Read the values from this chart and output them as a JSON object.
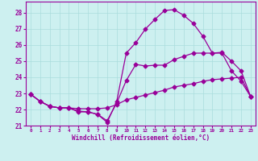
{
  "background_color": "#cdf0f0",
  "grid_color": "#aadddd",
  "line_color": "#990099",
  "xlabel": "Windchill (Refroidissement éolien,°C)",
  "ylabel_ticks": [
    21,
    22,
    23,
    24,
    25,
    26,
    27,
    28
  ],
  "xlim": [
    -0.5,
    23.5
  ],
  "ylim": [
    21.0,
    28.7
  ],
  "x_ticks": [
    0,
    1,
    2,
    3,
    4,
    5,
    6,
    7,
    8,
    9,
    10,
    11,
    12,
    13,
    14,
    15,
    16,
    17,
    18,
    19,
    20,
    21,
    22,
    23
  ],
  "series1_x": [
    0,
    1,
    2,
    3,
    4,
    5,
    6,
    7,
    8,
    9,
    10,
    11,
    12,
    13,
    14,
    15,
    16,
    17,
    18,
    19,
    20,
    21,
    22,
    23
  ],
  "series1_y": [
    22.95,
    22.5,
    22.2,
    22.1,
    22.1,
    22.05,
    22.05,
    22.05,
    22.1,
    22.3,
    22.6,
    22.75,
    22.9,
    23.05,
    23.2,
    23.4,
    23.5,
    23.6,
    23.75,
    23.85,
    23.9,
    23.95,
    24.0,
    22.8
  ],
  "series2_x": [
    0,
    1,
    2,
    3,
    4,
    5,
    6,
    7,
    8,
    9,
    10,
    11,
    12,
    13,
    14,
    15,
    16,
    17,
    18,
    19,
    20,
    21,
    22,
    23
  ],
  "series2_y": [
    22.95,
    22.5,
    22.2,
    22.1,
    22.1,
    21.9,
    21.85,
    21.7,
    21.3,
    22.4,
    23.8,
    24.8,
    24.7,
    24.75,
    24.75,
    25.1,
    25.3,
    25.5,
    25.5,
    25.5,
    25.55,
    25.0,
    24.4,
    22.8
  ],
  "series3_x": [
    0,
    1,
    2,
    3,
    4,
    5,
    6,
    7,
    8,
    9,
    10,
    11,
    12,
    13,
    14,
    15,
    16,
    17,
    18,
    19,
    20,
    21,
    22,
    23
  ],
  "series3_y": [
    22.95,
    22.5,
    22.2,
    22.1,
    22.1,
    21.85,
    21.85,
    21.7,
    21.2,
    22.5,
    25.5,
    26.15,
    27.0,
    27.6,
    28.15,
    28.2,
    27.85,
    27.35,
    26.55,
    25.5,
    25.5,
    24.4,
    23.75,
    22.8
  ],
  "marker": "D",
  "markersize": 2.5,
  "linewidth": 0.9
}
